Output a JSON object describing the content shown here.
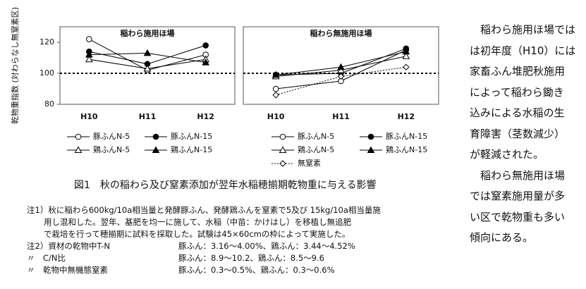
{
  "chart_data": [
    {
      "type": "line",
      "title": "稲わら施用ほ場",
      "ylabel": "乾物重指数 (対わらなし無窒素区)",
      "categories": [
        "H10",
        "H11",
        "H12"
      ],
      "ylim": [
        80,
        130
      ],
      "yticks": [
        80,
        100,
        120
      ],
      "hline": 100,
      "series": [
        {
          "name": "豚ふんN-5",
          "color": "#000000",
          "marker": "open-circle",
          "values": [
            122,
            102,
            112
          ]
        },
        {
          "name": "豚ふんN-15",
          "color": "#000000",
          "marker": "filled-circle",
          "values": [
            114,
            106,
            118
          ]
        },
        {
          "name": "鶏ふんN-5",
          "color": "#000000",
          "marker": "open-triangle",
          "values": [
            109,
            103,
            109
          ]
        },
        {
          "name": "鶏ふんN-15",
          "color": "#000000",
          "marker": "filled-triangle",
          "values": [
            112,
            113,
            107
          ]
        }
      ]
    },
    {
      "type": "line",
      "title": "稲わら無施用ほ場",
      "categories": [
        "H10",
        "H11",
        "H12"
      ],
      "ylim": [
        80,
        130
      ],
      "hline": 100,
      "series": [
        {
          "name": "豚ふんN-5",
          "color": "#000000",
          "marker": "open-circle",
          "values": [
            90,
            95,
            115
          ]
        },
        {
          "name": "豚ふんN-15",
          "color": "#000000",
          "marker": "filled-circle",
          "values": [
            99,
            100,
            116
          ]
        },
        {
          "name": "鶏ふんN-5",
          "color": "#000000",
          "marker": "open-triangle",
          "values": [
            98,
            102,
            111
          ]
        },
        {
          "name": "鶏ふんN-15",
          "color": "#000000",
          "marker": "filled-triangle",
          "values": [
            99,
            104,
            114
          ]
        },
        {
          "name": "無窒素",
          "color": "#000000",
          "marker": "open-diamond",
          "linestyle": "dotted",
          "values": [
            86,
            98,
            104
          ]
        }
      ]
    }
  ],
  "caption": "図1　秋の稲わら及び窒素添加が翌年水稲穂揃期乾物重に与える影響",
  "notes": {
    "note1": [
      "注1）秋に稲わら600kg/10a相当量と発酵豚ふん、発酵鶏ふんを窒素で5及び 15kg/10a相当量施",
      "用し混和した。翌年、基肥を均一に施して、水稲（中苗：かけはし）を移植し無追肥",
      "で栽培を行って穂揃期に試料を採取した。試験は45×60cmの枠によって実施した。"
    ],
    "note2": [
      [
        "注2）資材の乾物中T-N",
        "豚ふん：3.16～4.00%、鶏ふん：3.44～4.52%"
      ],
      [
        "〃　C/N比",
        "豚ふん：8.9～10.2、鶏ふん：8.5～9.6"
      ],
      [
        "〃　乾物中無機態窒素",
        "豚ふん：0.3～0.5%、鶏ふん：0.3～0.6%"
      ]
    ]
  },
  "side_text": [
    "稲わら施用ほ場では",
    "は初年度（H10）には",
    "家畜ふん堆肥秋施用",
    "によって稲わら鋤き",
    "込みによる水稲の生",
    "育障害（茎数減少）",
    "が軽減された。",
    "稲わら無施用ほ場",
    "では窒素施用量が多",
    "い区で乾物重も多い",
    "傾向にある。"
  ]
}
